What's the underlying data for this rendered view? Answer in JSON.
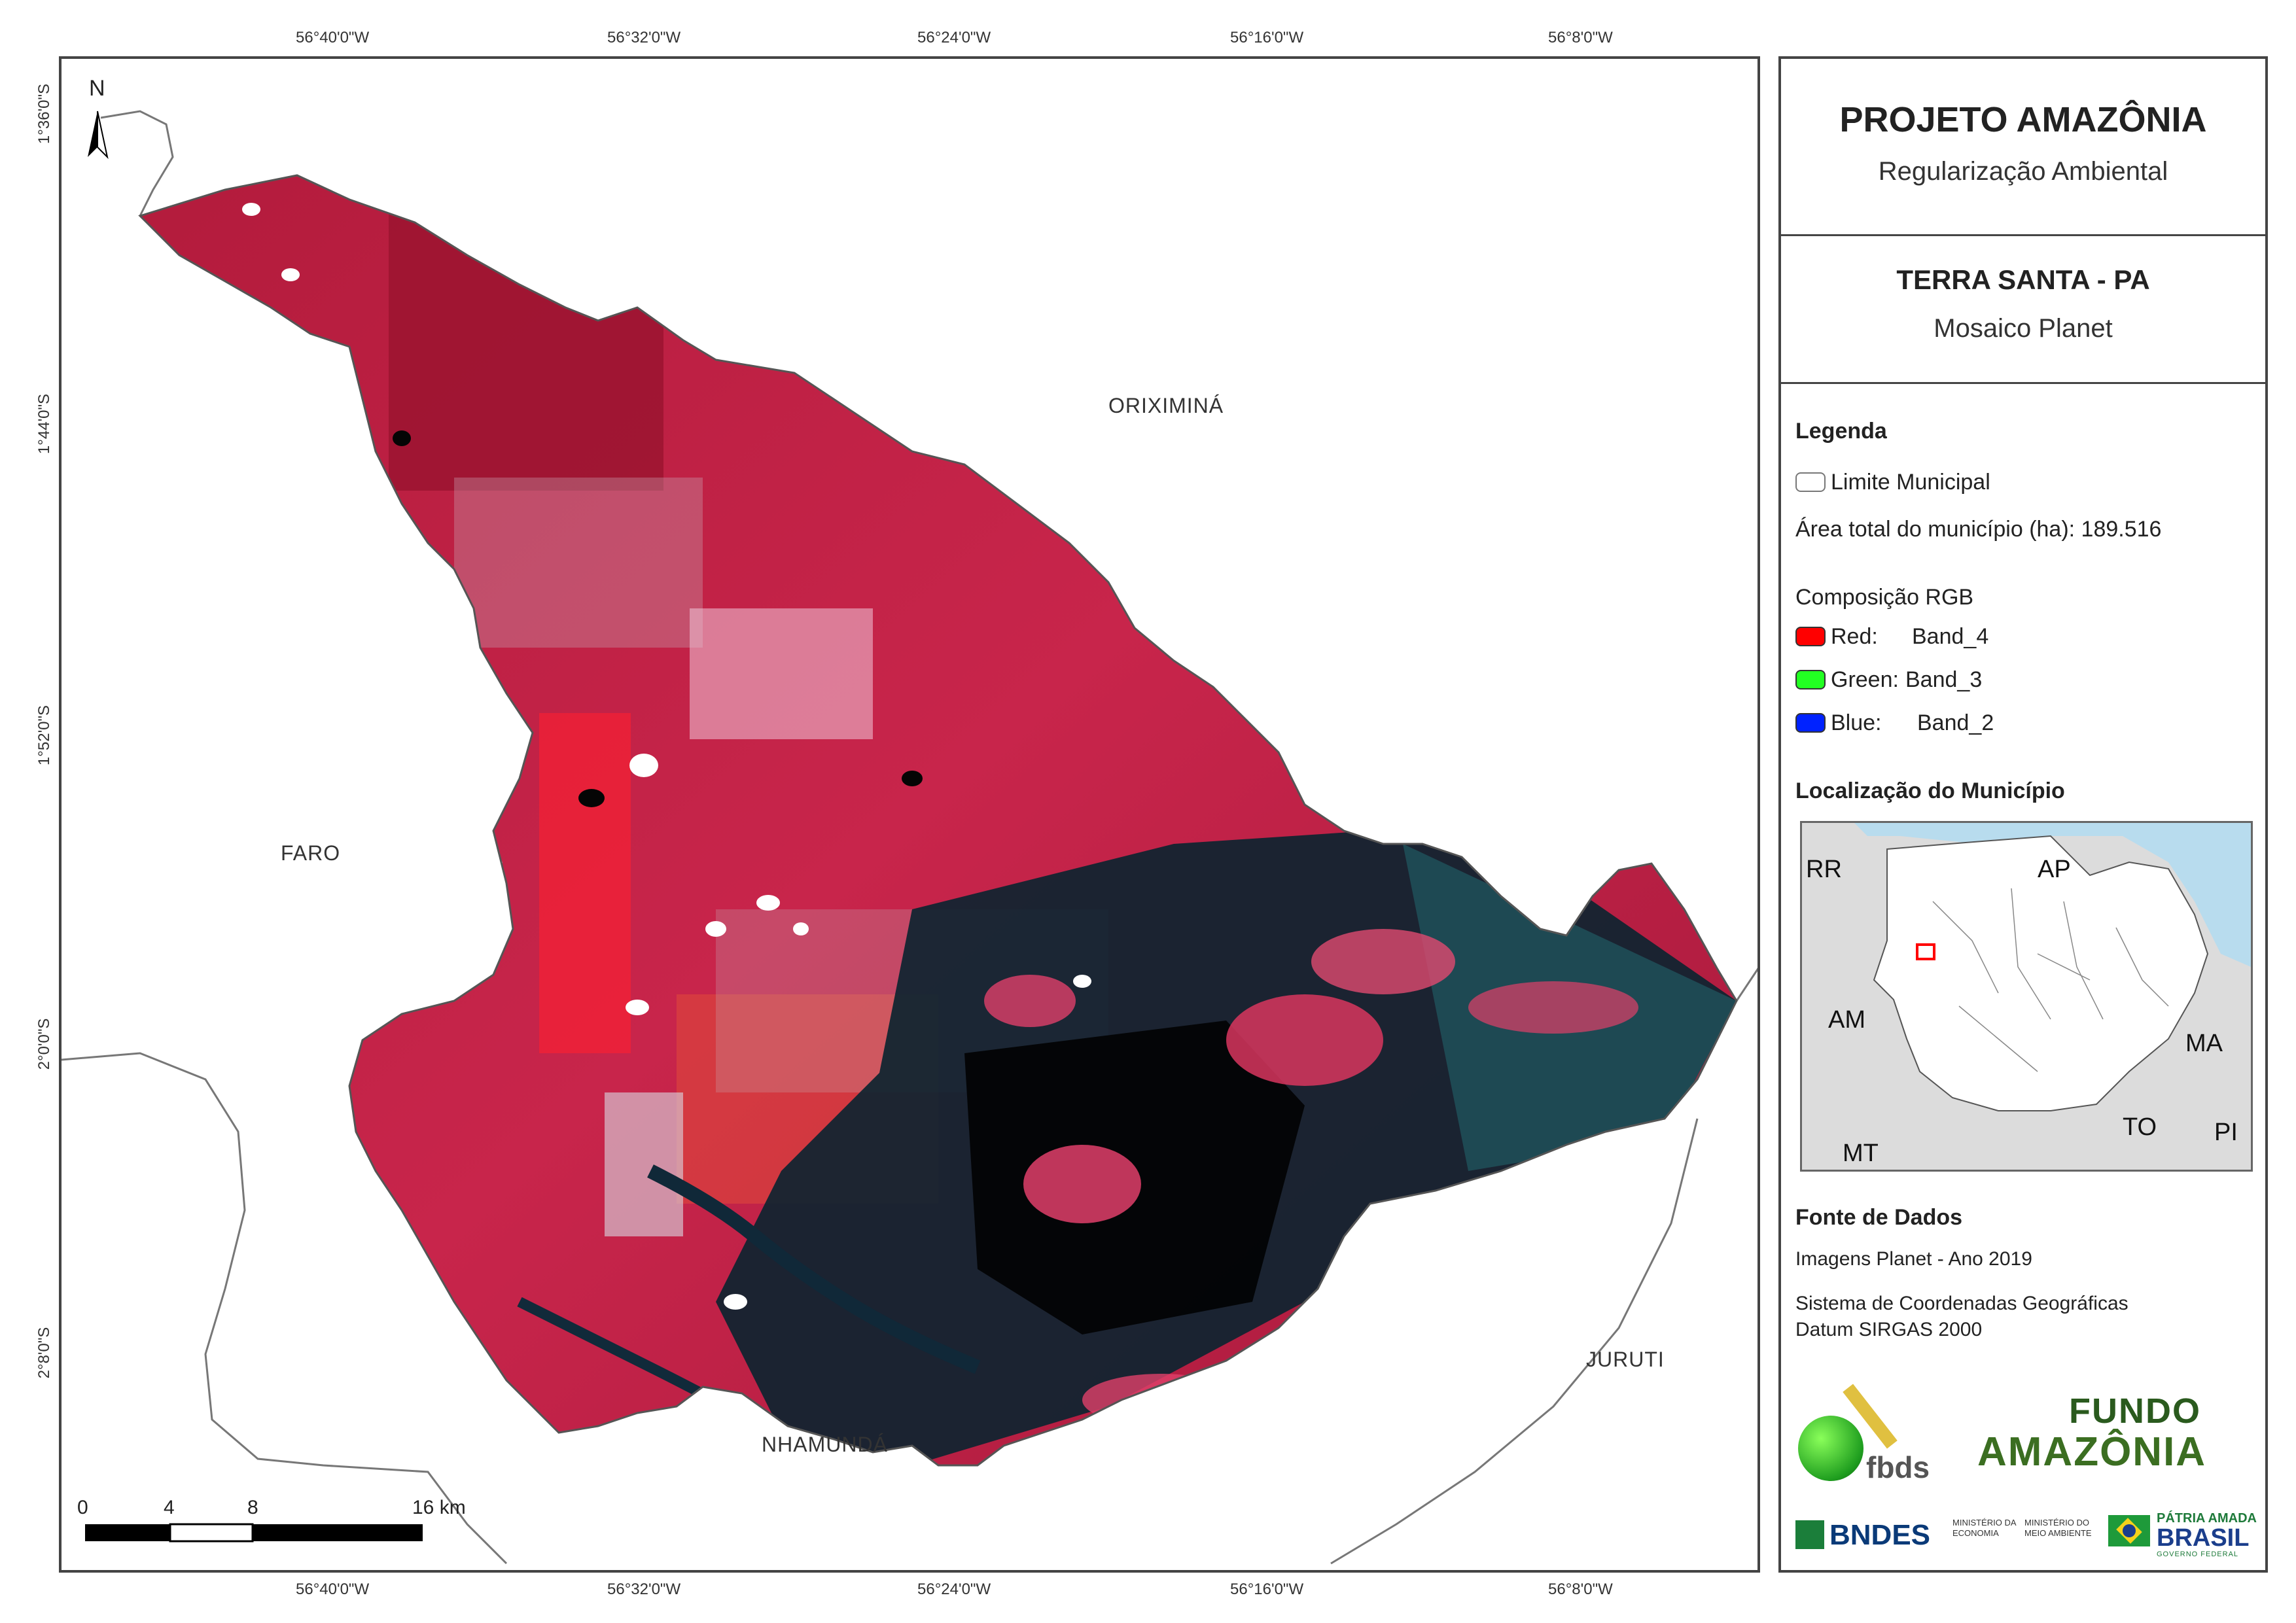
{
  "coords": {
    "top": [
      "56°40'0\"W",
      "56°32'0\"W",
      "56°24'0\"W",
      "56°16'0\"W",
      "56°8'0\"W"
    ],
    "bottom": [
      "56°40'0\"W",
      "56°32'0\"W",
      "56°24'0\"W",
      "56°16'0\"W",
      "56°8'0\"W"
    ],
    "left": [
      "1°36'0\"S",
      "1°44'0\"S",
      "1°52'0\"S",
      "2°0'0\"S",
      "2°8'0\"S"
    ]
  },
  "map": {
    "north_label": "N",
    "places": {
      "oriximina": "ORIXIMINÁ",
      "faro": "FARO",
      "nhamunda": "NHAMUNDÁ",
      "juruti": "JURUTI"
    },
    "scale": {
      "ticks": [
        "0",
        "4",
        "8",
        "16 km"
      ]
    }
  },
  "panel": {
    "title": "PROJETO AMAZÔNIA",
    "subtitle": "Regularização Ambiental",
    "municipality": "TERRA SANTA - PA",
    "product": "Mosaico Planet",
    "legend": {
      "heading": "Legenda",
      "boundary_label": "Limite Municipal",
      "area_text": "Área total do município (ha): 189.516",
      "rgb_heading": "Composição RGB",
      "red": {
        "label": "Red:",
        "band": "Band_4",
        "color": "#ff0000"
      },
      "green": {
        "label": "Green:",
        "band": "Band_3",
        "color": "#22ff22"
      },
      "blue": {
        "label": "Blue:",
        "band": "Band_2",
        "color": "#0022ff"
      }
    },
    "location": {
      "heading": "Localização do Município",
      "labels": {
        "rr": "RR",
        "ap": "AP",
        "am": "AM",
        "ma": "MA",
        "to": "TO",
        "mt": "MT",
        "pi": "PI"
      }
    },
    "sources": {
      "heading": "Fonte de Dados",
      "line1": "Imagens Planet - Ano 2019",
      "line2": "Sistema de Coordenadas Geográficas",
      "line3": "Datum SIRGAS 2000"
    },
    "logos": {
      "fbds": "fbds",
      "fundo_top": "FUNDO",
      "fundo_bottom": "AMAZÔNIA",
      "bndes": "BNDES",
      "min_econ": "MINISTÉRIO DA ECONOMIA",
      "min_env": "MINISTÉRIO DO MEIO AMBIENTE",
      "patria_top": "PÁTRIA AMADA",
      "patria_bottom": "BRASIL",
      "gov": "GOVERNO FEDERAL"
    }
  }
}
